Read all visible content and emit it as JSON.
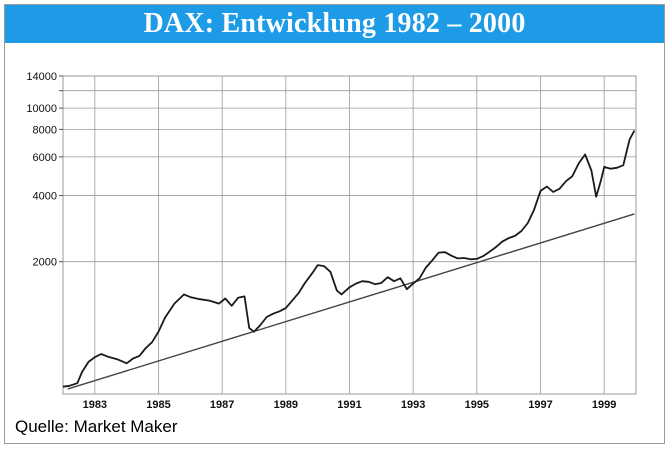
{
  "title": "DAX: Entwicklung 1982 – 2000",
  "source": "Quelle: Market Maker",
  "colors": {
    "title_bg": "#1d9be6",
    "title_text": "#ffffff",
    "line": "#1a1a1a",
    "trend": "#444444",
    "grid": "#9a9a9a"
  },
  "chart_data": {
    "type": "line",
    "title": "DAX: Entwicklung 1982 – 2000",
    "xlabel": "",
    "ylabel": "",
    "y_scale": "log",
    "xlim": [
      1982.0,
      2000.0
    ],
    "ylim": [
      500,
      14000
    ],
    "y_ticks": [
      2000,
      4000,
      6000,
      8000,
      10000,
      12000,
      14000
    ],
    "y_tick_labels": [
      "2000",
      "4000",
      "6000",
      "8000",
      "10000",
      "",
      "14000"
    ],
    "x_ticks": [
      1983,
      1985,
      1987,
      1989,
      1991,
      1993,
      1995,
      1997,
      1999
    ],
    "x_tick_labels": [
      "1983",
      "1985",
      "1987",
      "1989",
      "1991",
      "1993",
      "1995",
      "1997",
      "1999"
    ],
    "grid": true,
    "series": [
      {
        "x": [
          1982.0,
          1982.2,
          1982.45,
          1982.6,
          1982.8,
          1983.0,
          1983.2,
          1983.4,
          1983.7,
          1984.0,
          1984.2,
          1984.4,
          1984.6,
          1984.8,
          1985.0,
          1985.2,
          1985.5,
          1985.8,
          1986.0,
          1986.3,
          1986.6,
          1986.9,
          1987.1,
          1987.3,
          1987.5,
          1987.7,
          1987.85,
          1988.0,
          1988.2,
          1988.4,
          1988.6,
          1988.8,
          1989.0,
          1989.2,
          1989.4,
          1989.6,
          1989.85,
          1990.0,
          1990.2,
          1990.4,
          1990.6,
          1990.75,
          1991.0,
          1991.2,
          1991.4,
          1991.6,
          1991.8,
          1992.0,
          1992.2,
          1992.4,
          1992.6,
          1992.8,
          1993.0,
          1993.2,
          1993.4,
          1993.6,
          1993.8,
          1994.0,
          1994.2,
          1994.4,
          1994.6,
          1994.8,
          1995.0,
          1995.2,
          1995.4,
          1995.6,
          1995.8,
          1996.0,
          1996.2,
          1996.4,
          1996.6,
          1996.8,
          1997.0,
          1997.2,
          1997.4,
          1997.6,
          1997.8,
          1998.0,
          1998.2,
          1998.4,
          1998.6,
          1998.75,
          1998.9,
          1999.0,
          1999.2,
          1999.4,
          1999.6,
          1999.8,
          1999.95
        ],
        "values": [
          540,
          545,
          560,
          630,
          700,
          735,
          760,
          740,
          720,
          690,
          725,
          745,
          810,
          860,
          960,
          1110,
          1290,
          1420,
          1380,
          1350,
          1330,
          1290,
          1360,
          1260,
          1370,
          1390,
          1000,
          960,
          1030,
          1120,
          1160,
          1190,
          1230,
          1330,
          1440,
          1600,
          1790,
          1930,
          1910,
          1800,
          1480,
          1420,
          1530,
          1590,
          1630,
          1620,
          1580,
          1600,
          1700,
          1630,
          1680,
          1500,
          1590,
          1680,
          1880,
          2030,
          2200,
          2210,
          2130,
          2070,
          2080,
          2050,
          2060,
          2120,
          2220,
          2330,
          2470,
          2560,
          2620,
          2760,
          3000,
          3450,
          4200,
          4400,
          4150,
          4300,
          4650,
          4900,
          5600,
          6150,
          5200,
          3950,
          4700,
          5400,
          5300,
          5350,
          5500,
          7200,
          7900
        ]
      }
    ],
    "trendline": {
      "x": [
        1982.15,
        1999.95
      ],
      "values": [
        527,
        3300
      ]
    }
  }
}
